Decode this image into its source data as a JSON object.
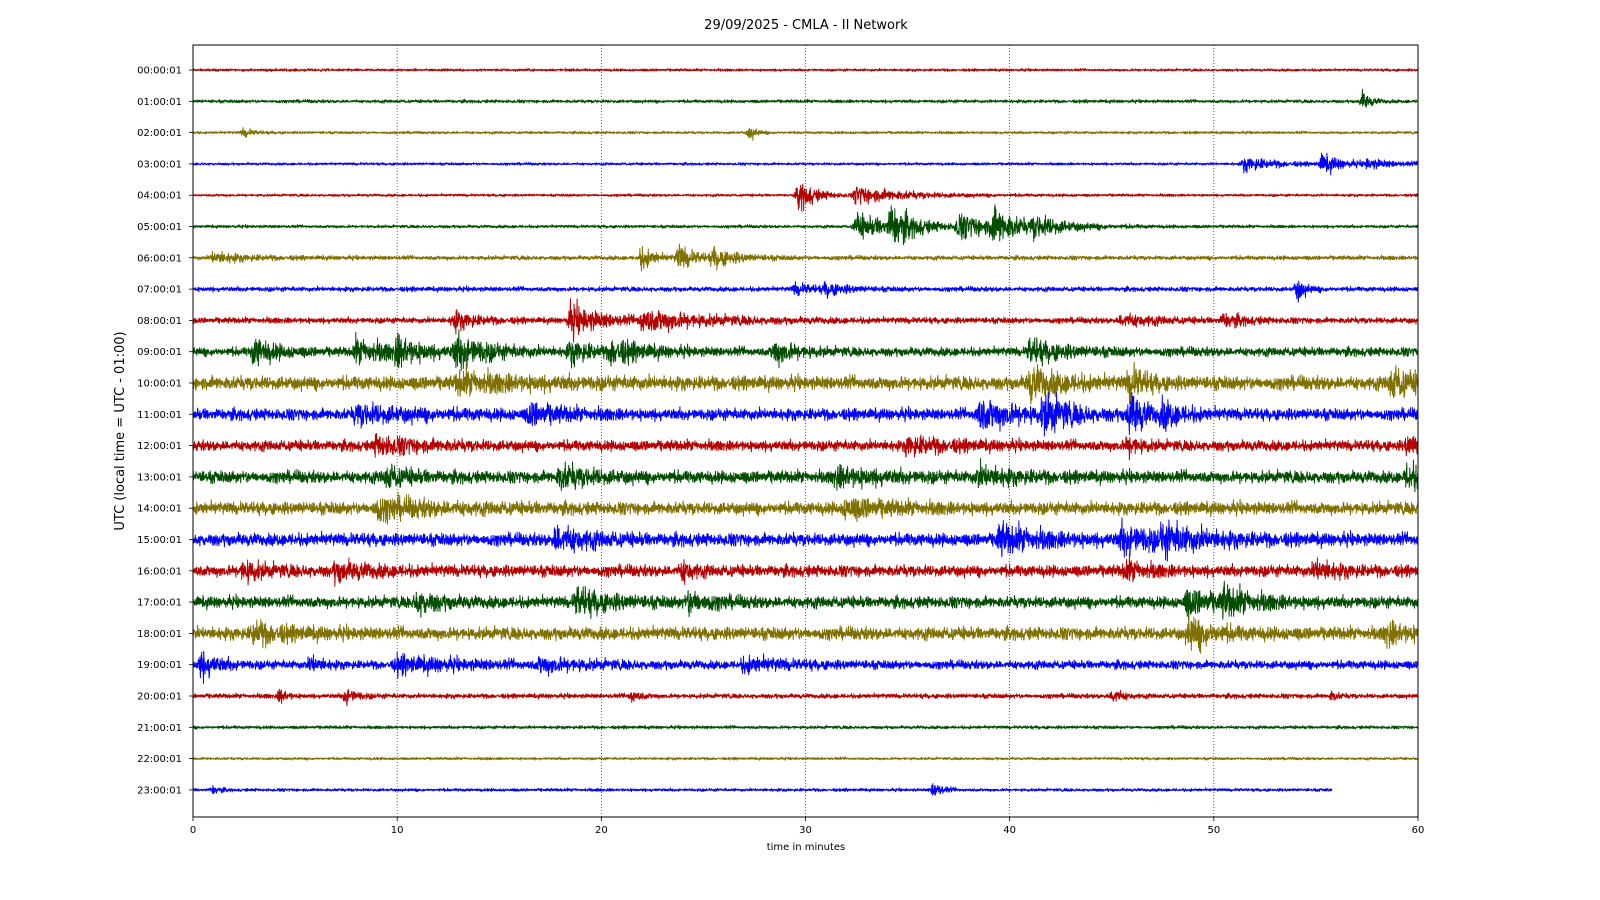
{
  "chart_data": {
    "type": "line",
    "title": "29/09/2025 - CMLA - II Network",
    "xlabel": "time in minutes",
    "ylabel": "UTC (local time = UTC - 01:00)",
    "xlim": [
      0,
      60
    ],
    "x_ticks": [
      0,
      10,
      20,
      30,
      40,
      50,
      60
    ],
    "x_tick_labels": [
      "0",
      "10",
      "20",
      "30",
      "40",
      "50",
      "60"
    ],
    "vertical_grid": true,
    "grid_style": "dotted",
    "colors": [
      "#b30000",
      "#004d00",
      "#807000",
      "#0000ff"
    ],
    "series": [
      {
        "label": "00:00:01",
        "amp": 0.12,
        "events": [],
        "end": 60
      },
      {
        "label": "01:00:01",
        "amp": 0.15,
        "events": [
          [
            57.3,
            0.9,
            0.4
          ]
        ],
        "end": 60
      },
      {
        "label": "02:00:01",
        "amp": 0.12,
        "events": [
          [
            2.5,
            0.4,
            0.5
          ],
          [
            27.3,
            0.7,
            0.3
          ]
        ],
        "end": 60
      },
      {
        "label": "03:00:01",
        "amp": 0.12,
        "events": [
          [
            51.5,
            0.7,
            1.5
          ],
          [
            55.3,
            0.9,
            1.0
          ],
          [
            57.5,
            0.4,
            1.5
          ]
        ],
        "end": 60
      },
      {
        "label": "04:00:01",
        "amp": 0.12,
        "events": [
          [
            29.7,
            1.5,
            0.8
          ],
          [
            32.5,
            0.8,
            2.5
          ]
        ],
        "end": 60
      },
      {
        "label": "05:00:01",
        "amp": 0.14,
        "events": [
          [
            32.5,
            1.2,
            2.0
          ],
          [
            34.2,
            1.8,
            1.0
          ],
          [
            37.5,
            1.0,
            2.5
          ],
          [
            39.2,
            1.6,
            1.0
          ],
          [
            41.2,
            0.8,
            1.5
          ]
        ],
        "end": 60
      },
      {
        "label": "06:00:01",
        "amp": 0.2,
        "events": [
          [
            1.0,
            0.5,
            1.5
          ],
          [
            22.0,
            1.1,
            0.6
          ],
          [
            23.8,
            1.2,
            0.8
          ],
          [
            25.5,
            0.8,
            1.2
          ]
        ],
        "end": 60
      },
      {
        "label": "07:00:01",
        "amp": 0.22,
        "events": [
          [
            29.5,
            0.5,
            1.0
          ],
          [
            31.0,
            0.5,
            1.0
          ],
          [
            54.1,
            1.1,
            0.4
          ]
        ],
        "end": 60
      },
      {
        "label": "08:00:01",
        "amp": 0.28,
        "events": [
          [
            12.8,
            0.9,
            1.0
          ],
          [
            18.5,
            1.5,
            1.5
          ],
          [
            22.0,
            1.0,
            3.0
          ],
          [
            45.5,
            0.6,
            1.5
          ],
          [
            50.5,
            0.6,
            1.0
          ]
        ],
        "end": 60
      },
      {
        "label": "09:00:01",
        "amp": 0.42,
        "events": [
          [
            3.0,
            1.3,
            1.0
          ],
          [
            8.0,
            1.0,
            2.0
          ],
          [
            10.0,
            1.2,
            1.0
          ],
          [
            12.9,
            1.6,
            1.5
          ],
          [
            18.5,
            1.0,
            1.0
          ],
          [
            20.5,
            1.1,
            1.5
          ],
          [
            28.5,
            1.1,
            1.0
          ],
          [
            41.0,
            1.1,
            1.5
          ]
        ],
        "end": 60
      },
      {
        "label": "10:00:01",
        "amp": 0.65,
        "events": [
          [
            13.0,
            0.8,
            3.0
          ],
          [
            41.0,
            1.4,
            1.5
          ],
          [
            45.9,
            1.5,
            0.7
          ],
          [
            58.7,
            1.3,
            1.2
          ]
        ],
        "end": 60
      },
      {
        "label": "11:00:01",
        "amp": 0.55,
        "events": [
          [
            8.0,
            0.8,
            2.5
          ],
          [
            16.5,
            0.9,
            1.5
          ],
          [
            38.5,
            1.4,
            2.0
          ],
          [
            41.7,
            2.0,
            1.0
          ],
          [
            45.9,
            2.2,
            0.7
          ],
          [
            47.5,
            1.0,
            1.0
          ]
        ],
        "end": 60
      },
      {
        "label": "12:00:01",
        "amp": 0.5,
        "events": [
          [
            9.0,
            0.8,
            2.0
          ],
          [
            35.0,
            0.7,
            2.0
          ],
          [
            45.8,
            0.8,
            0.6
          ],
          [
            59.5,
            0.8,
            1.0
          ]
        ],
        "end": 60
      },
      {
        "label": "13:00:01",
        "amp": 0.58,
        "events": [
          [
            9.5,
            0.9,
            1.0
          ],
          [
            18.0,
            1.0,
            1.5
          ],
          [
            31.5,
            0.8,
            2.0
          ],
          [
            38.5,
            0.8,
            1.5
          ],
          [
            59.5,
            1.1,
            1.0
          ]
        ],
        "end": 60
      },
      {
        "label": "14:00:01",
        "amp": 0.6,
        "events": [
          [
            9.0,
            0.9,
            2.5
          ],
          [
            32.0,
            0.8,
            2.0
          ]
        ],
        "end": 60
      },
      {
        "label": "15:00:01",
        "amp": 0.6,
        "events": [
          [
            17.8,
            1.2,
            1.5
          ],
          [
            39.5,
            1.2,
            2.0
          ],
          [
            45.5,
            1.2,
            2.0
          ],
          [
            47.5,
            1.0,
            2.0
          ]
        ],
        "end": 60
      },
      {
        "label": "16:00:01",
        "amp": 0.55,
        "events": [
          [
            2.5,
            0.9,
            1.0
          ],
          [
            7.0,
            0.8,
            1.5
          ],
          [
            24.0,
            0.9,
            0.5
          ],
          [
            45.7,
            0.8,
            1.0
          ],
          [
            55.0,
            0.8,
            1.0
          ]
        ],
        "end": 60
      },
      {
        "label": "17:00:01",
        "amp": 0.55,
        "events": [
          [
            11.0,
            1.0,
            1.0
          ],
          [
            18.8,
            1.2,
            1.5
          ],
          [
            24.3,
            1.0,
            1.0
          ],
          [
            48.7,
            1.1,
            1.5
          ],
          [
            50.5,
            1.0,
            1.5
          ]
        ],
        "end": 60
      },
      {
        "label": "18:00:01",
        "amp": 0.6,
        "events": [
          [
            3.0,
            0.9,
            1.5
          ],
          [
            48.8,
            1.5,
            1.2
          ],
          [
            58.5,
            1.0,
            1.0
          ]
        ],
        "end": 60
      },
      {
        "label": "19:00:01",
        "amp": 0.4,
        "events": [
          [
            0.4,
            1.2,
            0.8
          ],
          [
            5.8,
            0.7,
            0.5
          ],
          [
            10.0,
            0.7,
            3.0
          ],
          [
            17.0,
            0.6,
            2.0
          ],
          [
            27.0,
            0.6,
            2.0
          ]
        ],
        "end": 60
      },
      {
        "label": "20:00:01",
        "amp": 0.22,
        "events": [
          [
            4.3,
            0.7,
            0.3
          ],
          [
            7.5,
            0.8,
            0.5
          ],
          [
            21.5,
            0.6,
            0.4
          ],
          [
            45.1,
            0.8,
            0.4
          ],
          [
            55.8,
            0.4,
            0.3
          ]
        ],
        "end": 60
      },
      {
        "label": "21:00:01",
        "amp": 0.15,
        "events": [],
        "end": 60
      },
      {
        "label": "22:00:01",
        "amp": 0.12,
        "events": [],
        "end": 60
      },
      {
        "label": "23:00:01",
        "amp": 0.14,
        "events": [
          [
            1.0,
            0.4,
            0.3
          ],
          [
            36.3,
            0.8,
            0.4
          ]
        ],
        "end": 55.8
      }
    ]
  }
}
